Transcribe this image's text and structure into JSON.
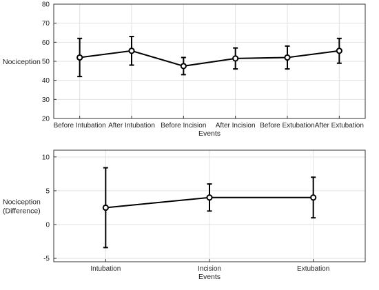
{
  "chart_data": [
    {
      "type": "line",
      "title": "",
      "xlabel": "Events",
      "ylabel": "Nociception",
      "categories": [
        "Before Intubation",
        "After Intubation",
        "Before Incision",
        "After Incision",
        "Before Extubation",
        "After Extubation"
      ],
      "ylim": [
        20,
        80
      ],
      "yticks": [
        20,
        30,
        40,
        50,
        60,
        70,
        80
      ],
      "grid": true,
      "legend": "none",
      "series": [
        {
          "values": [
            52,
            55.5,
            47.5,
            51.5,
            52,
            55.5
          ],
          "error_low": [
            42,
            48,
            43,
            46,
            46,
            49
          ],
          "error_high": [
            62,
            63,
            52,
            57,
            58,
            62
          ]
        }
      ],
      "colors": {
        "line": "#000000",
        "grid": "#e2e2e2",
        "axes": "#333333"
      }
    },
    {
      "type": "line",
      "title": "",
      "xlabel": "Events",
      "ylabel": [
        "Nociception",
        "(Difference)"
      ],
      "categories": [
        "Intubation",
        "Incision",
        "Extubation"
      ],
      "ylim": [
        -5.5,
        11
      ],
      "yticks": [
        -5,
        0,
        5,
        10
      ],
      "grid": true,
      "legend": "none",
      "series": [
        {
          "values": [
            2.5,
            4,
            4
          ],
          "error_low": [
            -3.4,
            2,
            1
          ],
          "error_high": [
            8.4,
            6,
            7
          ]
        }
      ],
      "colors": {
        "line": "#000000",
        "grid": "#e2e2e2",
        "axes": "#333333"
      }
    }
  ]
}
